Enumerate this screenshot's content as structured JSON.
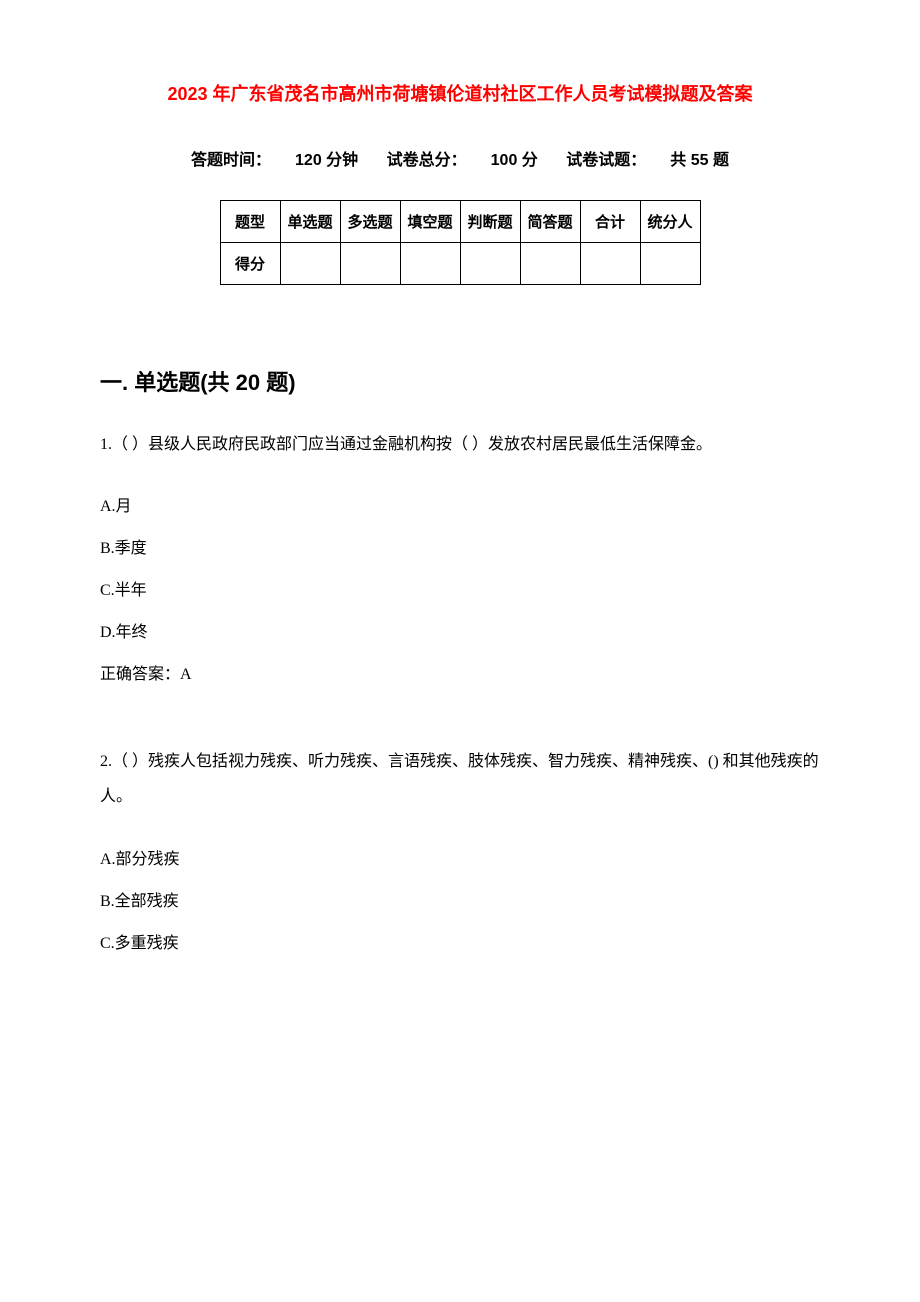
{
  "title": "2023 年广东省茂名市高州市荷塘镇伦道村社区工作人员考试模拟题及答案",
  "info": {
    "time_label": "答题时间：",
    "time_value": "120 分钟",
    "score_label": "试卷总分：",
    "score_value": "100 分",
    "count_label": "试卷试题：",
    "count_value": "共 55 题"
  },
  "score_table": {
    "headers": [
      "题型",
      "单选题",
      "多选题",
      "填空题",
      "判断题",
      "简答题",
      "合计",
      "统分人"
    ],
    "row2_label": "得分"
  },
  "section1": {
    "heading": "一. 单选题(共 20 题)",
    "q1": {
      "text": "1.（ ）县级人民政府民政部门应当通过金融机构按（ ）发放农村居民最低生活保障金。",
      "options": {
        "a": "A.月",
        "b": "B.季度",
        "c": "C.半年",
        "d": "D.年终"
      },
      "answer": "正确答案：A"
    },
    "q2": {
      "text": "2.（ ）残疾人包括视力残疾、听力残疾、言语残疾、肢体残疾、智力残疾、精神残疾、() 和其他残疾的人。",
      "options": {
        "a": "A.部分残疾",
        "b": "B.全部残疾",
        "c": "C.多重残疾"
      }
    }
  }
}
